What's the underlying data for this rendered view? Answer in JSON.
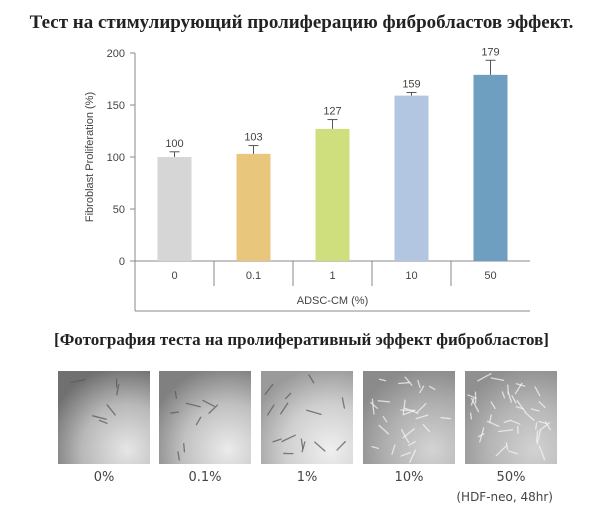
{
  "header": {
    "title": "Тест на стимулирующий пролиферацию фибробластов эффект."
  },
  "chart_data": {
    "type": "bar",
    "xlabel": "ADSC-CM (%)",
    "ylabel": "Fibroblast Proliferation (%)",
    "ylim": [
      0,
      200
    ],
    "yticks": [
      "0",
      "50",
      "100",
      "150",
      "200"
    ],
    "categories": [
      "0",
      "0.1",
      "1",
      "10",
      "50"
    ],
    "values": [
      100,
      103,
      127,
      159,
      179
    ],
    "value_labels": [
      "100",
      "103",
      "127",
      "159",
      "179"
    ],
    "errors": [
      5,
      8,
      9,
      3,
      14
    ],
    "colors": [
      "#d6d6d6",
      "#e8c77c",
      "#cfdf7e",
      "#b2c6e2",
      "#6e9ec0"
    ],
    "grid": false,
    "legend": "none"
  },
  "photos": {
    "title": "[Фотография теста на пролиферативный эффект фибробластов]",
    "labels": [
      "0%",
      "0.1%",
      "1%",
      "10%",
      "50%"
    ],
    "note": "(HDF-neo, 48hr)"
  }
}
